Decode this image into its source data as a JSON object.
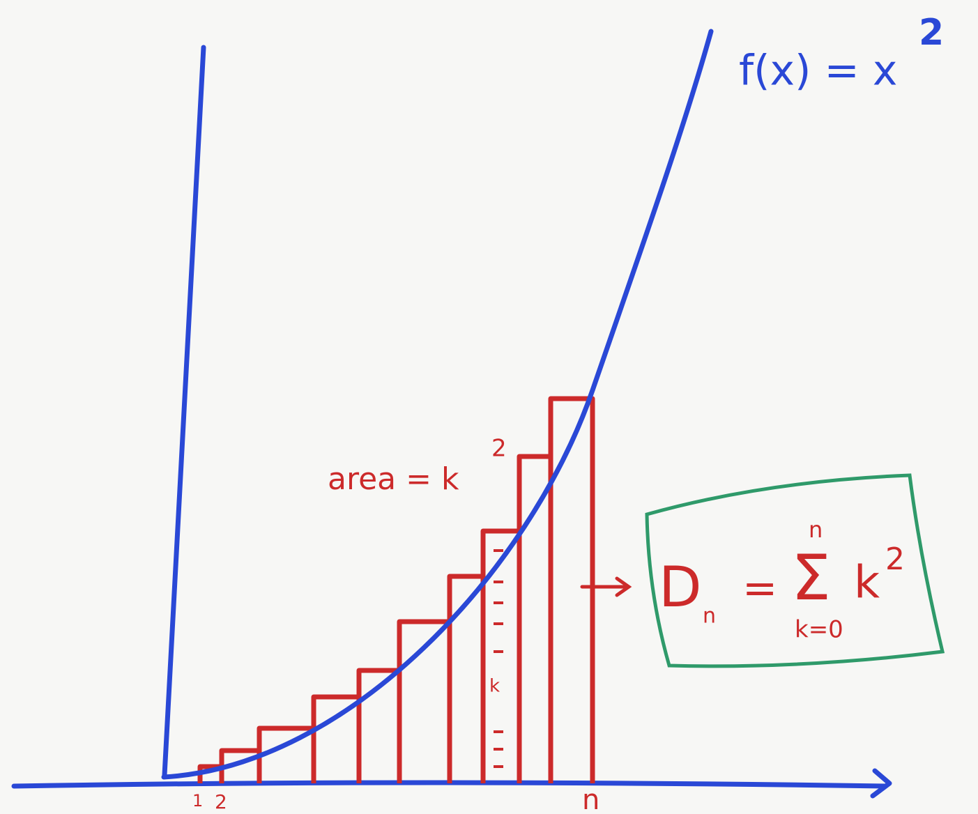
{
  "function_label": {
    "base": "f(x) = x",
    "exponent": "2"
  },
  "area_label": {
    "base": "area = k",
    "exponent": "2"
  },
  "formula": {
    "lhs": "D",
    "lhs_subscript": "n",
    "equals": "=",
    "sigma": "Σ",
    "upper": "n",
    "lower": "k=0",
    "term": "k",
    "term_exponent": "2"
  },
  "axis_labels": [
    "1",
    "2",
    "n"
  ],
  "bar_label": "k"
}
